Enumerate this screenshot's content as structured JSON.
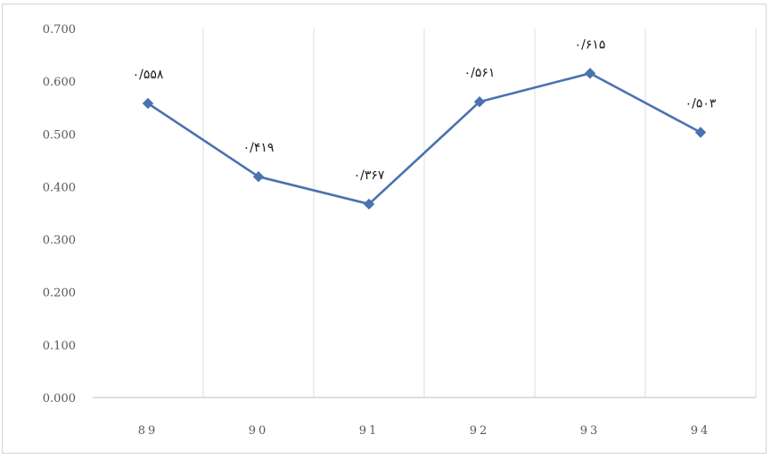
{
  "chart_data": {
    "type": "line",
    "categories": [
      "89",
      "90",
      "91",
      "92",
      "93",
      "94"
    ],
    "values": [
      0.558,
      0.419,
      0.367,
      0.561,
      0.615,
      0.503
    ],
    "data_labels": [
      "۰/۵۵۸",
      "۰/۴۱۹",
      "۰/۳۶۷",
      "۰/۵۶۱",
      "۰/۶۱۵",
      "۰/۵۰۳"
    ],
    "y_tick_labels": [
      "0.000",
      "0.100",
      "0.200",
      "0.300",
      "0.400",
      "0.500",
      "0.600",
      "0.700"
    ],
    "ylim": [
      0,
      0.7
    ],
    "grid": "vertical",
    "marker": "diamond",
    "title": "",
    "xlabel": "",
    "ylabel": ""
  },
  "colors": {
    "series": "#4a72b0",
    "gridline": "#dcdcdc",
    "axis": "#bfbfbf",
    "tick_text": "#595959"
  }
}
